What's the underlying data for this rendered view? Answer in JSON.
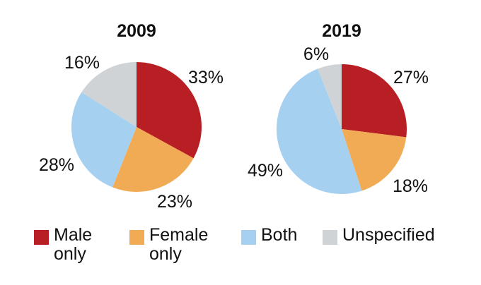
{
  "chart_data": [
    {
      "type": "pie",
      "title": "2009",
      "categories": [
        "Male only",
        "Female only",
        "Both",
        "Unspecified"
      ],
      "values": [
        33,
        23,
        28,
        16
      ],
      "labels": [
        "33%",
        "23%",
        "28%",
        "16%"
      ]
    },
    {
      "type": "pie",
      "title": "2019",
      "categories": [
        "Male only",
        "Female only",
        "Both",
        "Unspecified"
      ],
      "values": [
        27,
        18,
        49,
        6
      ],
      "labels": [
        "27%",
        "18%",
        "49%",
        "6%"
      ]
    }
  ],
  "legend": [
    {
      "label": "Male only",
      "color": "#b81f25"
    },
    {
      "label": "Female only",
      "color": "#f2ab55"
    },
    {
      "label": "Both",
      "color": "#a6d0ef"
    },
    {
      "label": "Unspecified",
      "color": "#d0d3d6"
    }
  ]
}
